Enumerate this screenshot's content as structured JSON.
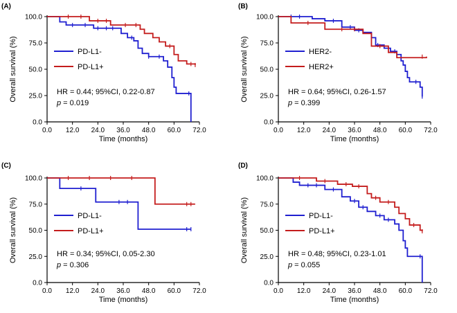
{
  "chart_data": [
    {
      "type": "line",
      "panel_label": "(A)",
      "xlabel": "Time (months)",
      "ylabel": "Overall survival (%)",
      "xlim": [
        0,
        72
      ],
      "ylim": [
        0,
        100
      ],
      "x_ticks": [
        0,
        12,
        24,
        36,
        48,
        60,
        72
      ],
      "x_tick_labels": [
        "0.0",
        "12.0",
        "24.0",
        "36.0",
        "48.0",
        "60.0",
        "72.0"
      ],
      "y_ticks": [
        0,
        25,
        50,
        75,
        100
      ],
      "y_tick_labels": [
        "0.0",
        "25.0",
        "50.0",
        "75.0",
        "100.0"
      ],
      "legend_position": "left",
      "stats": {
        "hr": "HR = 0.44; 95%CI, 0.22-0.87",
        "p_label": "p",
        "p_value": " = 0.019"
      },
      "series": [
        {
          "name": "PD-L1-",
          "color": "#1f1fd0",
          "x": [
            0,
            6,
            9,
            22,
            35,
            38,
            41,
            43,
            45,
            48,
            55,
            57,
            59,
            60,
            61,
            68,
            68
          ],
          "y": [
            100,
            95,
            92,
            89,
            84,
            80,
            77,
            70,
            65,
            62,
            58,
            52,
            42,
            33,
            27,
            27,
            0
          ],
          "censor_x": [
            12,
            18,
            24,
            28,
            31,
            40,
            48,
            53,
            67
          ],
          "censor_y": [
            92,
            92,
            89,
            89,
            89,
            80,
            62,
            62,
            27
          ]
        },
        {
          "name": "PD-L1+",
          "color": "#c41c1c",
          "x": [
            0,
            20,
            30,
            44,
            46,
            50,
            53,
            56,
            60,
            62,
            66,
            70
          ],
          "y": [
            100,
            96,
            92,
            88,
            84,
            80,
            76,
            72,
            64,
            58,
            55,
            54
          ],
          "censor_x": [
            10,
            16,
            24,
            28,
            37,
            42,
            58,
            68,
            70
          ],
          "censor_y": [
            100,
            100,
            96,
            96,
            92,
            92,
            72,
            55,
            54
          ]
        }
      ]
    },
    {
      "type": "line",
      "panel_label": "(B)",
      "xlabel": "Time (months)",
      "ylabel": "Overall survival (%)",
      "xlim": [
        0,
        72
      ],
      "ylim": [
        0,
        100
      ],
      "x_ticks": [
        0,
        12,
        24,
        36,
        48,
        60,
        72
      ],
      "x_tick_labels": [
        "0.0",
        "12.0",
        "24.0",
        "36.0",
        "48.0",
        "60.0",
        "72.0"
      ],
      "y_ticks": [
        0,
        25,
        50,
        75,
        100
      ],
      "y_tick_labels": [
        "0.0",
        "25.0",
        "50.0",
        "75.0",
        "100.0"
      ],
      "legend_position": "left",
      "stats": {
        "hr": "HR = 0.64; 95%CI, 0.26-1.57",
        "p_label": "p",
        "p_value": " = 0.399"
      },
      "series": [
        {
          "name": "HER2-",
          "color": "#1f1fd0",
          "x": [
            0,
            16,
            22,
            30,
            36,
            40,
            44,
            46,
            50,
            53,
            56,
            58,
            59,
            60,
            61,
            62,
            67,
            68
          ],
          "y": [
            100,
            98,
            96,
            90,
            87,
            85,
            80,
            73,
            70,
            67,
            64,
            58,
            54,
            48,
            42,
            38,
            33,
            24
          ],
          "censor_x": [
            6,
            10,
            26,
            34,
            38,
            47,
            52,
            55,
            65,
            68
          ],
          "censor_y": [
            100,
            100,
            96,
            90,
            87,
            73,
            70,
            67,
            38,
            24
          ]
        },
        {
          "name": "HER2+",
          "color": "#c41c1c",
          "x": [
            0,
            6,
            22,
            40,
            44,
            52,
            56,
            70
          ],
          "y": [
            100,
            94,
            88,
            84,
            72,
            66,
            61,
            62
          ],
          "censor_x": [
            14,
            30,
            36,
            48,
            68
          ],
          "censor_y": [
            94,
            88,
            88,
            72,
            62
          ]
        }
      ]
    },
    {
      "type": "line",
      "panel_label": "(C)",
      "xlabel": "Time (months)",
      "ylabel": "Overall survival (%)",
      "xlim": [
        0,
        72
      ],
      "ylim": [
        0,
        100
      ],
      "x_ticks": [
        0,
        12,
        24,
        36,
        48,
        60,
        72
      ],
      "x_tick_labels": [
        "0.0",
        "12.0",
        "24.0",
        "36.0",
        "48.0",
        "60.0",
        "72.0"
      ],
      "y_ticks": [
        0,
        25,
        50,
        75,
        100
      ],
      "y_tick_labels": [
        "0.0",
        "25.0",
        "50.0",
        "75.0",
        "100.0"
      ],
      "legend_position": "left",
      "stats": {
        "hr": "HR = 0.34; 95%CI, 0.05-2.30",
        "p_label": "p",
        "p_value": " = 0.306"
      },
      "series": [
        {
          "name": "PD-L1-",
          "color": "#1f1fd0",
          "x": [
            0,
            6,
            23,
            43,
            68
          ],
          "y": [
            100,
            90,
            77,
            51,
            51
          ],
          "censor_x": [
            16,
            34,
            38,
            66,
            68
          ],
          "censor_y": [
            90,
            77,
            77,
            51,
            51
          ]
        },
        {
          "name": "PD-L1+",
          "color": "#c41c1c",
          "x": [
            0,
            51,
            70
          ],
          "y": [
            100,
            75,
            75
          ],
          "censor_x": [
            10,
            20,
            30,
            40,
            66,
            68
          ],
          "censor_y": [
            100,
            100,
            100,
            100,
            75,
            75
          ]
        }
      ]
    },
    {
      "type": "line",
      "panel_label": "(D)",
      "xlabel": "Time (months)",
      "ylabel": "Overall survival (%)",
      "xlim": [
        0,
        72
      ],
      "ylim": [
        0,
        100
      ],
      "x_ticks": [
        0,
        12,
        24,
        36,
        48,
        60,
        72
      ],
      "x_tick_labels": [
        "0.0",
        "12.0",
        "24.0",
        "36.0",
        "48.0",
        "60.0",
        "72.0"
      ],
      "y_ticks": [
        0,
        25,
        50,
        75,
        100
      ],
      "y_tick_labels": [
        "0.0",
        "25.0",
        "50.0",
        "75.0",
        "100.0"
      ],
      "legend_position": "left",
      "stats": {
        "hr": "HR = 0.48; 95%CI, 0.23-1.01",
        "p_label": "p",
        "p_value": " = 0.055"
      },
      "series": [
        {
          "name": "PD-L1-",
          "color": "#1f1fd0",
          "x": [
            0,
            7,
            10,
            22,
            30,
            34,
            38,
            42,
            46,
            50,
            55,
            57,
            59,
            60,
            61,
            68,
            68
          ],
          "y": [
            100,
            96,
            93,
            89,
            82,
            78,
            72,
            68,
            64,
            60,
            56,
            50,
            40,
            33,
            25,
            25,
            0
          ],
          "censor_x": [
            14,
            18,
            26,
            36,
            40,
            48,
            52,
            67
          ],
          "censor_y": [
            93,
            93,
            89,
            78,
            72,
            64,
            60,
            25
          ]
        },
        {
          "name": "PD-L1+",
          "color": "#c41c1c",
          "x": [
            0,
            18,
            28,
            35,
            42,
            44,
            48,
            55,
            57,
            60,
            62,
            67,
            68
          ],
          "y": [
            100,
            97,
            94,
            92,
            85,
            81,
            77,
            72,
            66,
            61,
            55,
            50,
            49
          ],
          "censor_x": [
            10,
            22,
            32,
            38,
            46,
            52,
            64,
            68
          ],
          "censor_y": [
            100,
            97,
            94,
            92,
            81,
            77,
            55,
            49
          ]
        }
      ]
    }
  ]
}
